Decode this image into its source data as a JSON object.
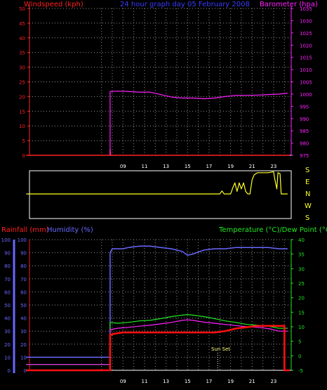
{
  "header": {
    "left_label": "Windspeed (kph)",
    "center_title": "24 hour graph day   05 February 2008",
    "right_label": "Barometer (hpa)"
  },
  "colors": {
    "wind": "#ff2020",
    "barometer": "#ff20ff",
    "direction": "#ffff20",
    "humidity": "#6868ff",
    "temperature": "#20e820",
    "dewpoint": "#ff20ff",
    "rainfall": "#ff1010",
    "title": "#3a3aff",
    "axis": "#ffffff",
    "grid": "#909090",
    "frame": "#ffffff"
  },
  "compass": [
    "S",
    "E",
    "N",
    "W",
    "S"
  ],
  "sunset_label": "Sun Set",
  "chart_data": [
    {
      "type": "line",
      "title": "24 hour graph day   05 February 2008",
      "x_ticks": [
        "09",
        "11",
        "13",
        "15",
        "17",
        "19",
        "21",
        "23"
      ],
      "left_axis": {
        "label": "Windspeed (kph)",
        "ticks": [
          0,
          5,
          10,
          15,
          20,
          25,
          30,
          35,
          40,
          45,
          50
        ],
        "range": [
          0,
          50
        ]
      },
      "right_axis": {
        "label": "Barometer (hpa)",
        "ticks": [
          975,
          980,
          985,
          990,
          995,
          1000,
          1005,
          1010,
          1015,
          1020,
          1025,
          1030,
          1035
        ],
        "range": [
          975,
          1035
        ]
      },
      "grid": true,
      "series": [
        {
          "name": "Windspeed (kph)",
          "axis": "left",
          "points": [
            [
              0,
              0
            ],
            [
              7.8,
              0
            ],
            [
              7.8,
              2
            ],
            [
              7.85,
              0
            ],
            [
              24.5,
              0
            ]
          ]
        },
        {
          "name": "Barometer (hpa)",
          "axis": "right",
          "points": [
            [
              7.8,
              975
            ],
            [
              7.8,
              1001
            ],
            [
              8.5,
              1001.2
            ],
            [
              9.5,
              1001.1
            ],
            [
              10.5,
              1000.8
            ],
            [
              11.5,
              1000.8
            ],
            [
              12.5,
              999.8
            ],
            [
              13.5,
              998.8
            ],
            [
              14.5,
              998.4
            ],
            [
              15.5,
              998.4
            ],
            [
              16.5,
              998.1
            ],
            [
              17.5,
              998.4
            ],
            [
              18.5,
              999.0
            ],
            [
              19.5,
              999.5
            ],
            [
              20.5,
              999.5
            ],
            [
              21.5,
              999.6
            ],
            [
              22.5,
              999.8
            ],
            [
              23.5,
              1000.0
            ],
            [
              24.3,
              1000.4
            ]
          ]
        }
      ]
    },
    {
      "type": "line",
      "axis_labels": [
        "S",
        "E",
        "N",
        "W",
        "S"
      ],
      "series": [
        {
          "name": "wind direction",
          "points": [
            [
              0,
              0
            ],
            [
              17.5,
              0
            ],
            [
              18.0,
              0
            ],
            [
              18.2,
              0.06
            ],
            [
              18.4,
              0
            ],
            [
              19.0,
              0
            ],
            [
              19.2,
              0.12
            ],
            [
              19.4,
              0.22
            ],
            [
              19.6,
              0.05
            ],
            [
              19.8,
              0.22
            ],
            [
              20.0,
              0.1
            ],
            [
              20.2,
              0.22
            ],
            [
              20.4,
              0.05
            ],
            [
              20.6,
              0
            ],
            [
              20.8,
              0
            ],
            [
              21.0,
              0.28
            ],
            [
              21.2,
              0.38
            ],
            [
              21.5,
              0.42
            ],
            [
              22.5,
              0.42
            ],
            [
              23.0,
              0.44
            ],
            [
              23.1,
              0.3
            ],
            [
              23.3,
              0.1
            ],
            [
              23.4,
              0.42
            ],
            [
              23.6,
              0.4
            ],
            [
              23.7,
              0
            ],
            [
              24.3,
              0
            ]
          ]
        }
      ]
    },
    {
      "type": "line",
      "x_ticks": [
        "09",
        "11",
        "13",
        "15",
        "17",
        "19",
        "21",
        "23"
      ],
      "left_axis_outer": {
        "label": "Rainfall (mm)",
        "ticks": [
          0,
          10,
          20,
          30,
          40,
          50,
          60,
          70,
          80,
          90,
          100
        ],
        "range": [
          0,
          100
        ]
      },
      "left_axis_inner": {
        "label": "Humidity (%)",
        "ticks": [
          0,
          10,
          20,
          30,
          40,
          50,
          60,
          70,
          80,
          90,
          100
        ],
        "range": [
          0,
          100
        ]
      },
      "right_axis": {
        "label": "Temperature (°C)/Dew Point (°C)",
        "ticks": [
          -5,
          0,
          5,
          10,
          15,
          20,
          25,
          30,
          35,
          40
        ],
        "range": [
          -5,
          40
        ]
      },
      "annotation": {
        "label": "Sun Set",
        "x": 17.8
      },
      "grid": true,
      "series": [
        {
          "name": "Humidity (%)",
          "axis": "inner",
          "points": [
            [
              0,
              10
            ],
            [
              7.8,
              10
            ],
            [
              7.8,
              90
            ],
            [
              8.0,
              93
            ],
            [
              9.0,
              93
            ],
            [
              9.5,
              94
            ],
            [
              10.5,
              95
            ],
            [
              11.5,
              95
            ],
            [
              12.5,
              94
            ],
            [
              13.5,
              93
            ],
            [
              14.5,
              91
            ],
            [
              15.0,
              88
            ],
            [
              15.5,
              89
            ],
            [
              16.5,
              92
            ],
            [
              17.5,
              93
            ],
            [
              18.5,
              93
            ],
            [
              19.5,
              94
            ],
            [
              20.5,
              94
            ],
            [
              21.5,
              94
            ],
            [
              22.5,
              94
            ],
            [
              23.5,
              93
            ],
            [
              24.3,
              93
            ]
          ]
        },
        {
          "name": "Temperature (°C)",
          "axis": "right",
          "points": [
            [
              0,
              -3
            ],
            [
              7.8,
              -3
            ],
            [
              7.8,
              11.5
            ],
            [
              8.5,
              11.2
            ],
            [
              9.5,
              11.5
            ],
            [
              10.5,
              12.0
            ],
            [
              11.5,
              12.2
            ],
            [
              12.5,
              12.8
            ],
            [
              13.5,
              13.5
            ],
            [
              14.5,
              14.0
            ],
            [
              15.0,
              14.2
            ],
            [
              15.5,
              14.0
            ],
            [
              16.5,
              13.5
            ],
            [
              17.5,
              12.8
            ],
            [
              18.5,
              12.0
            ],
            [
              19.5,
              11.5
            ],
            [
              20.5,
              10.8
            ],
            [
              21.5,
              10.5
            ],
            [
              22.5,
              10.2
            ],
            [
              23.5,
              9.5
            ],
            [
              24.3,
              9.5
            ]
          ]
        },
        {
          "name": "Dew Point (°C)",
          "axis": "right",
          "points": [
            [
              0,
              -3
            ],
            [
              7.8,
              -3
            ],
            [
              7.8,
              9
            ],
            [
              8.5,
              9.5
            ],
            [
              9.5,
              9.8
            ],
            [
              10.5,
              10.2
            ],
            [
              11.5,
              10.5
            ],
            [
              12.5,
              11.0
            ],
            [
              13.5,
              11.5
            ],
            [
              14.5,
              12.2
            ],
            [
              15.0,
              12.4
            ],
            [
              15.5,
              12.2
            ],
            [
              16.5,
              11.6
            ],
            [
              17.5,
              11.2
            ],
            [
              18.5,
              10.8
            ],
            [
              19.5,
              10.4
            ],
            [
              20.5,
              10.0
            ],
            [
              21.5,
              9.8
            ],
            [
              22.5,
              9.4
            ],
            [
              23.5,
              8.5
            ],
            [
              24.3,
              8.5
            ]
          ]
        },
        {
          "name": "Rainfall (mm)",
          "axis": "outer",
          "points": [
            [
              0,
              0
            ],
            [
              7.8,
              0
            ],
            [
              7.8,
              27
            ],
            [
              8.2,
              28
            ],
            [
              9.0,
              29
            ],
            [
              17.5,
              29
            ],
            [
              18.5,
              30
            ],
            [
              19.5,
              32
            ],
            [
              20.5,
              33
            ],
            [
              21.5,
              34
            ],
            [
              22.5,
              34
            ],
            [
              23.5,
              34
            ],
            [
              24.0,
              34
            ],
            [
              24.0,
              0
            ],
            [
              24.5,
              0
            ]
          ]
        }
      ]
    }
  ],
  "panel2": {
    "rain_label": "Rainfall (mm)",
    "humidity_label": "Humidity (%)",
    "temperature_label": "Temperature (°C)/Dew Point (°C)"
  }
}
